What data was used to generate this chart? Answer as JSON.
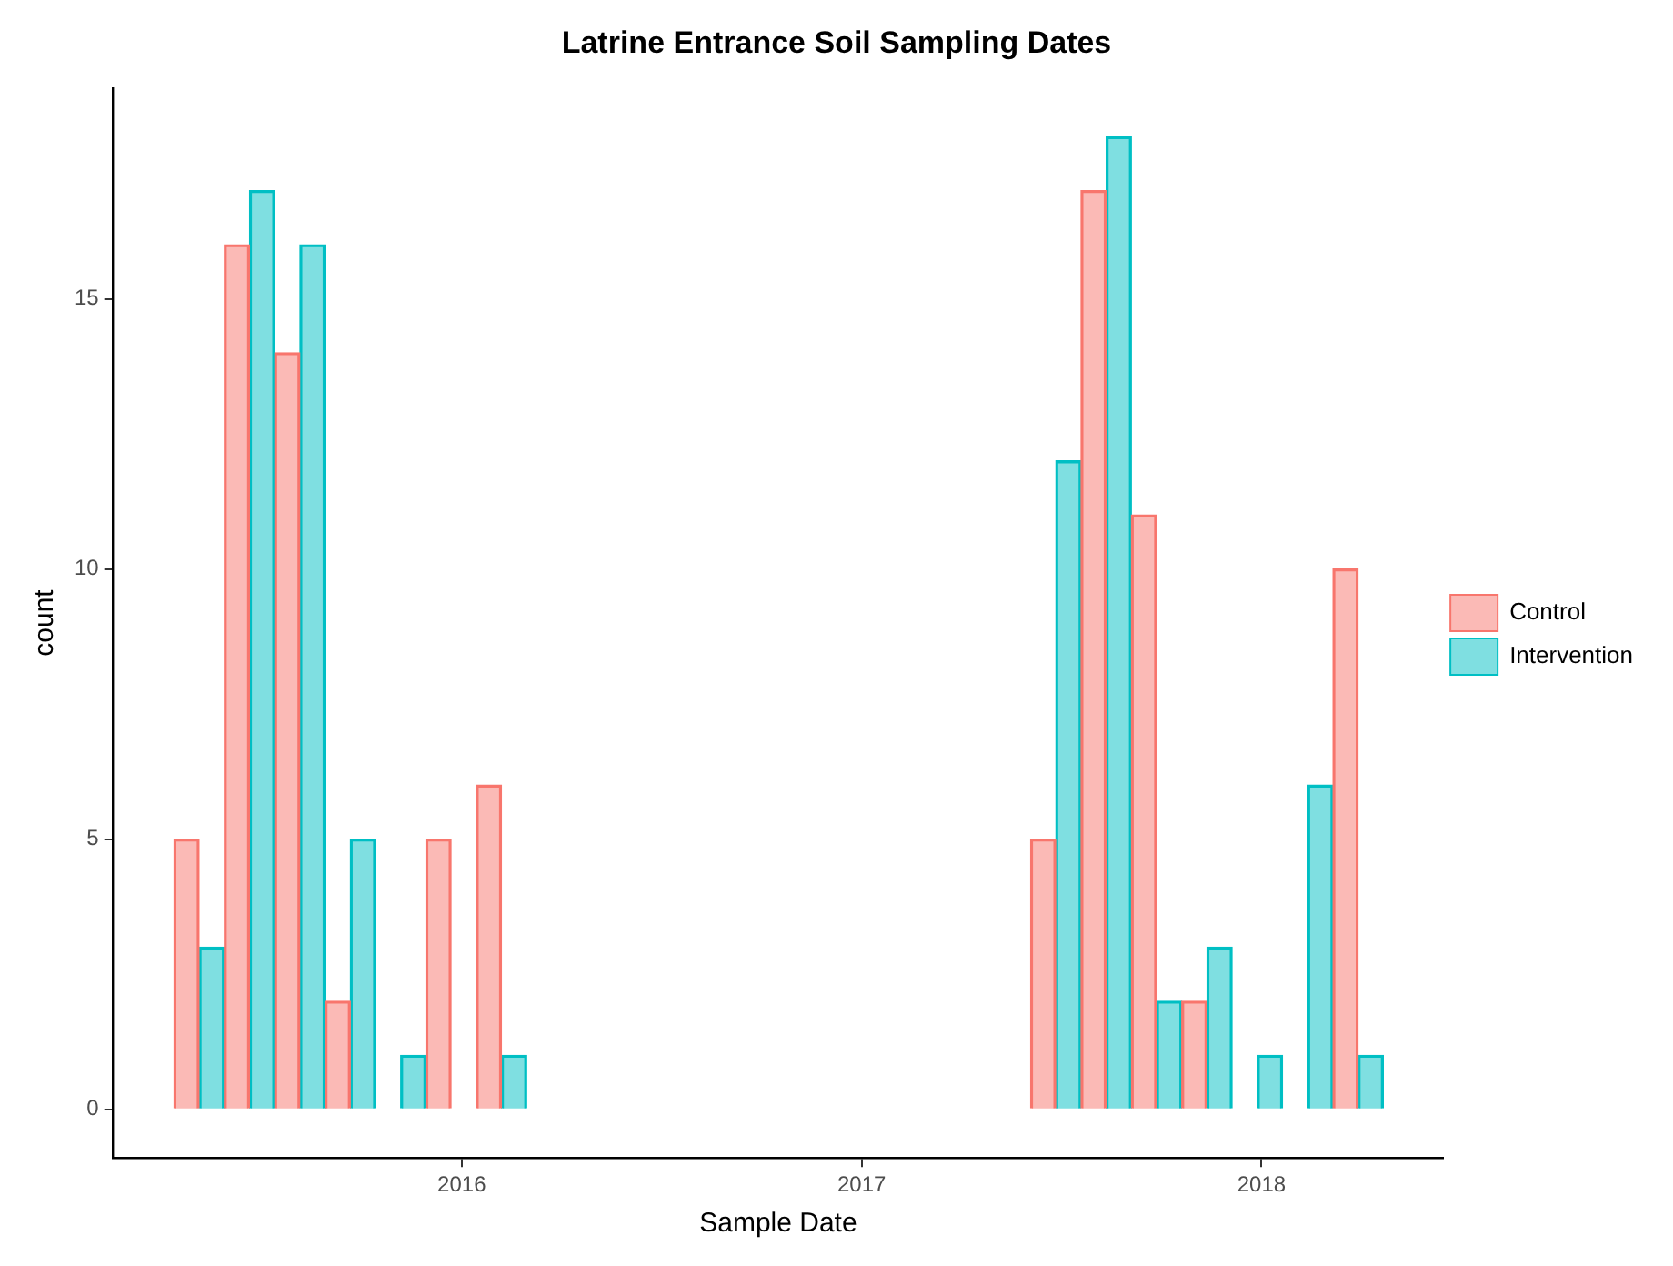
{
  "chart_data": {
    "type": "bar",
    "title": "Latrine Entrance Soil Sampling Dates",
    "xlabel": "Sample Date",
    "ylabel": "count",
    "series": [
      {
        "name": "Control",
        "color": "#f8766d",
        "x": [
          2015.312,
          2015.438,
          2015.564,
          2015.69,
          2015.816,
          2015.942,
          2016.068,
          2016.194,
          2016.32,
          2016.446,
          2016.572,
          2016.698,
          2016.824,
          2016.95,
          2017.076,
          2017.202,
          2017.328,
          2017.454,
          2017.58,
          2017.706,
          2017.832,
          2017.958,
          2018.084,
          2018.21
        ],
        "values": [
          5,
          16,
          14,
          2,
          0,
          5,
          6,
          0,
          0,
          0,
          0,
          0,
          0,
          0,
          0,
          0,
          0,
          5,
          17,
          11,
          2,
          0,
          0,
          10
        ]
      },
      {
        "name": "Intervention",
        "color": "#00bfc4",
        "x": [
          2015.375,
          2015.501,
          2015.627,
          2015.753,
          2015.879,
          2016.005,
          2016.131,
          2016.257,
          2016.383,
          2016.509,
          2016.635,
          2016.761,
          2016.887,
          2017.013,
          2017.139,
          2017.265,
          2017.391,
          2017.517,
          2017.643,
          2017.769,
          2017.895,
          2018.021,
          2018.147,
          2018.273
        ],
        "values": [
          3,
          17,
          16,
          5,
          1,
          0,
          1,
          0,
          0,
          0,
          0,
          0,
          0,
          0,
          0,
          0,
          0,
          12,
          18,
          2,
          3,
          1,
          6,
          1
        ]
      }
    ],
    "xlim": [
      2015.129,
      2018.454
    ],
    "xticks": [
      2016,
      2017,
      2018
    ],
    "ylim": [
      -0.9,
      18.9
    ],
    "yticks": [
      0,
      5,
      10,
      15
    ],
    "grid": false,
    "legend": "right"
  }
}
